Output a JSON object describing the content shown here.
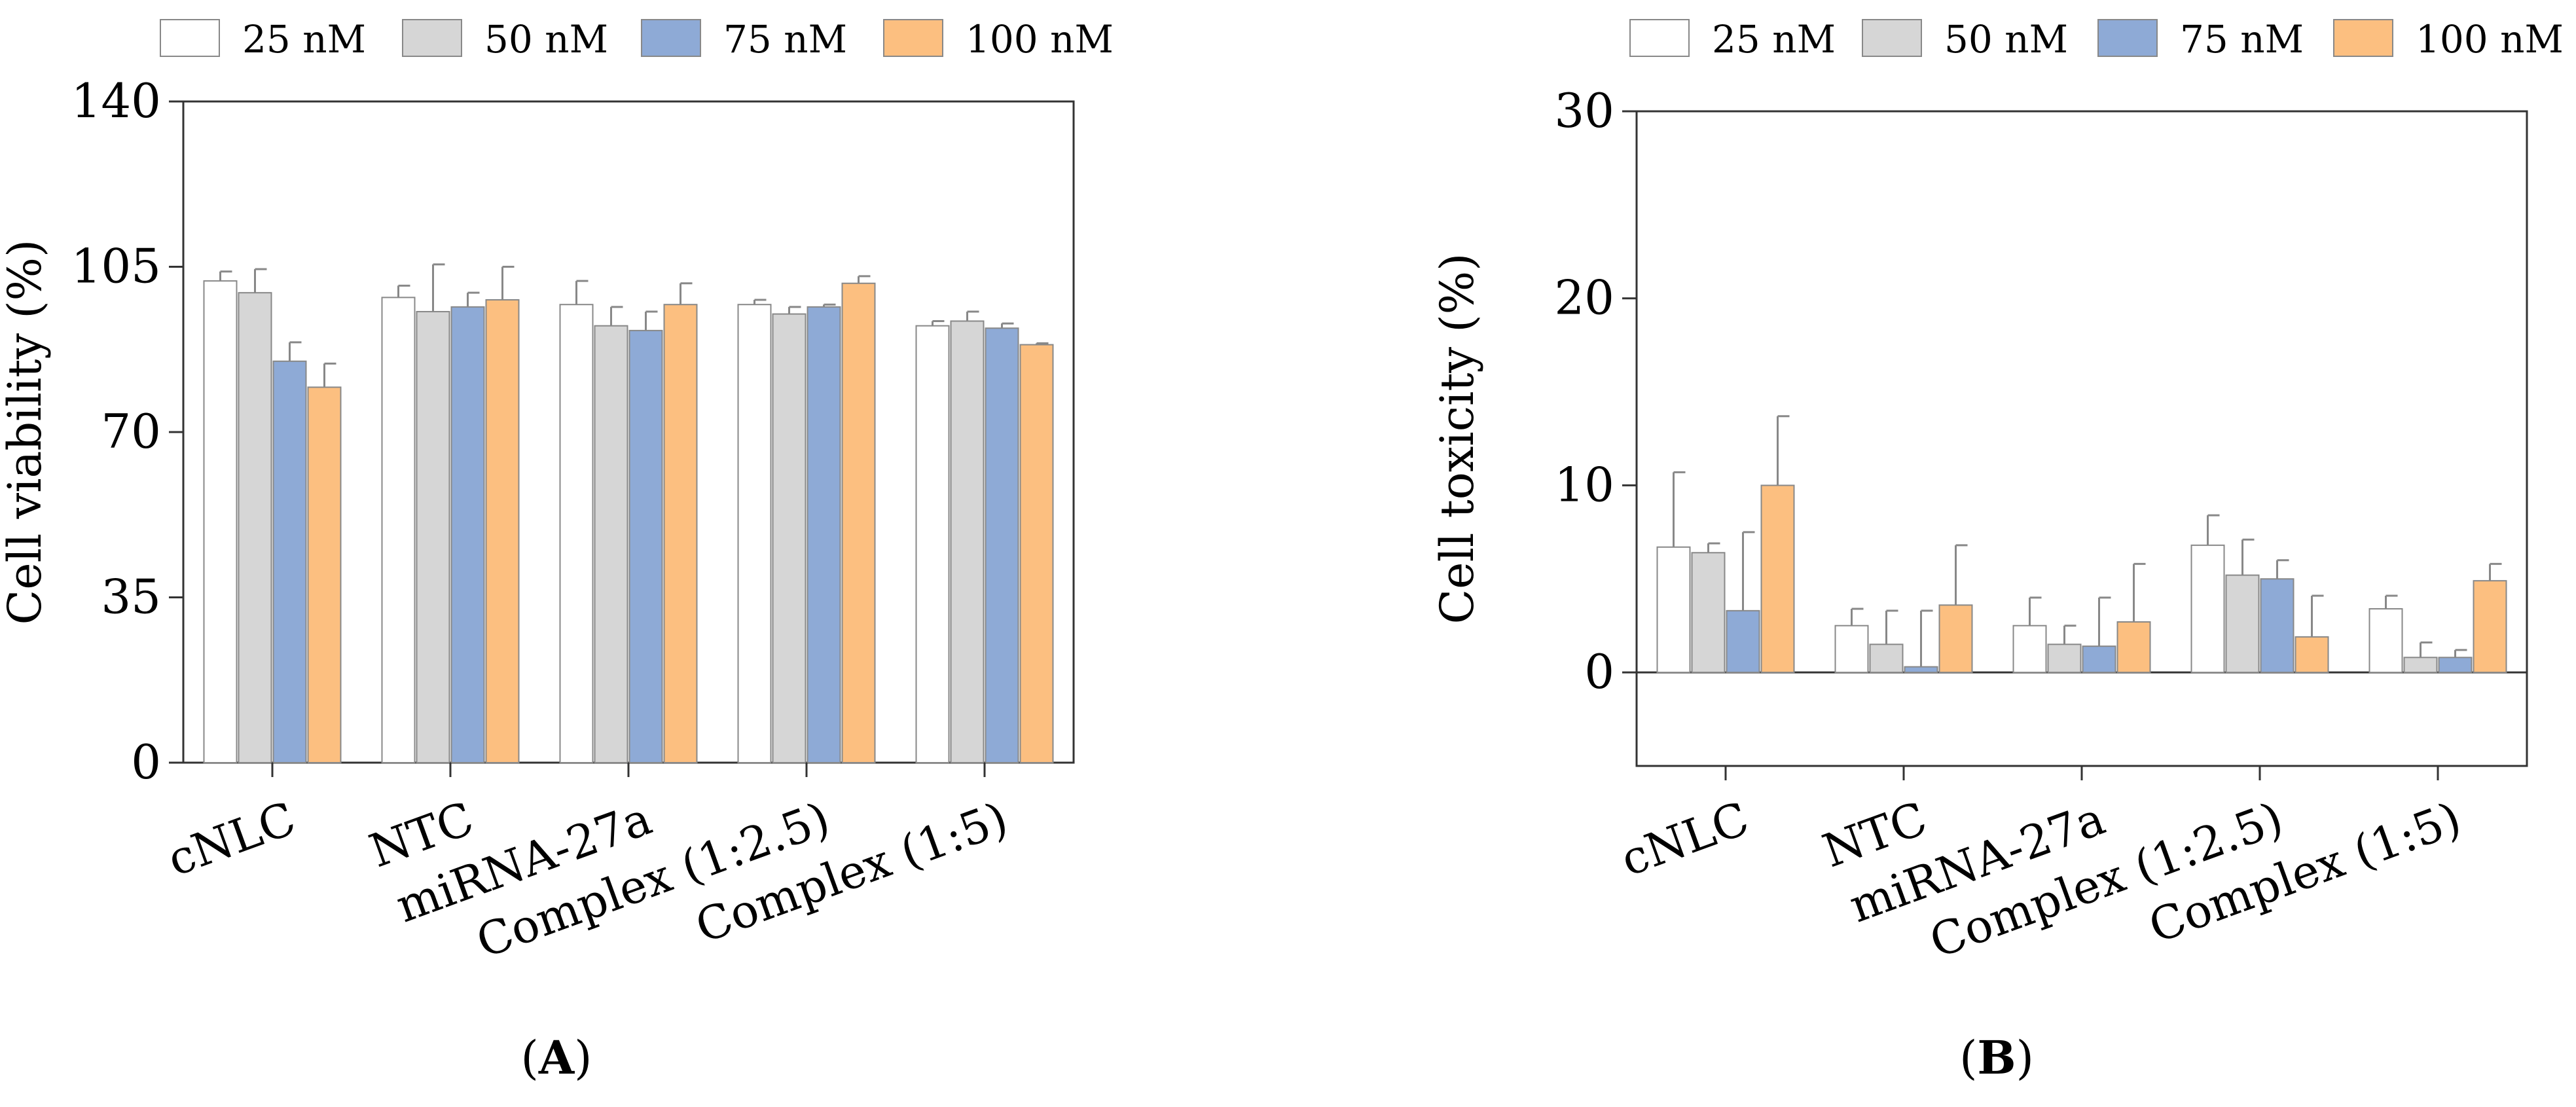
{
  "colors": {
    "25 nM": "#ffffff",
    "50 nM": "#d6d6d6",
    "75 nM": "#8eaad6",
    "100 nM": "#fcbf80",
    "axis": "#333333",
    "bar_stroke": "#888888"
  },
  "chart_data": [
    {
      "type": "bar",
      "panel_label": "A",
      "ylabel": "Cell viability (%)",
      "ylim": [
        0,
        140
      ],
      "yticks": [
        0,
        35,
        70,
        105,
        140
      ],
      "legend": "top",
      "categories": [
        "cNLC",
        "NTC",
        "miRNA-27a",
        "Complex (1:2.5)",
        "Complex (1:5)"
      ],
      "series": [
        {
          "name": "25 nM",
          "values": [
            102,
            98.5,
            97,
            97,
            92.5
          ],
          "errors": [
            2,
            2.5,
            5,
            1,
            1
          ]
        },
        {
          "name": "50 nM",
          "values": [
            99.5,
            95.5,
            92.5,
            95,
            93.5
          ],
          "errors": [
            5,
            10,
            4,
            1.5,
            2
          ]
        },
        {
          "name": "75 nM",
          "values": [
            85,
            96.5,
            91.5,
            96.5,
            92
          ],
          "errors": [
            4,
            3,
            4,
            0.5,
            1
          ]
        },
        {
          "name": "100 nM",
          "values": [
            79.5,
            98,
            97,
            101.5,
            88.5
          ],
          "errors": [
            5,
            7,
            4.5,
            1.5,
            0.3
          ]
        }
      ]
    },
    {
      "type": "bar",
      "panel_label": "B",
      "ylabel": "Cell toxicity (%)",
      "ylim": [
        -5,
        30
      ],
      "yticks": [
        0,
        10,
        20,
        30
      ],
      "legend": "top",
      "categories": [
        "cNLC",
        "NTC",
        "miRNA-27a",
        "Complex (1:2.5)",
        "Complex (1:5)"
      ],
      "series": [
        {
          "name": "25 nM",
          "values": [
            6.7,
            2.5,
            2.5,
            6.8,
            3.4
          ],
          "errors": [
            4,
            0.9,
            1.5,
            1.6,
            0.7
          ]
        },
        {
          "name": "50 nM",
          "values": [
            6.4,
            1.5,
            1.5,
            5.2,
            0.8
          ],
          "errors": [
            0.5,
            1.8,
            1,
            1.9,
            0.8
          ]
        },
        {
          "name": "75 nM",
          "values": [
            3.3,
            0.3,
            1.4,
            5.0,
            0.8
          ],
          "errors": [
            4.2,
            3,
            2.6,
            1,
            0.4
          ]
        },
        {
          "name": "100 nM",
          "values": [
            10.0,
            3.6,
            2.7,
            1.9,
            4.9
          ],
          "errors": [
            3.7,
            3.2,
            3.1,
            2.2,
            0.9
          ]
        }
      ]
    }
  ]
}
